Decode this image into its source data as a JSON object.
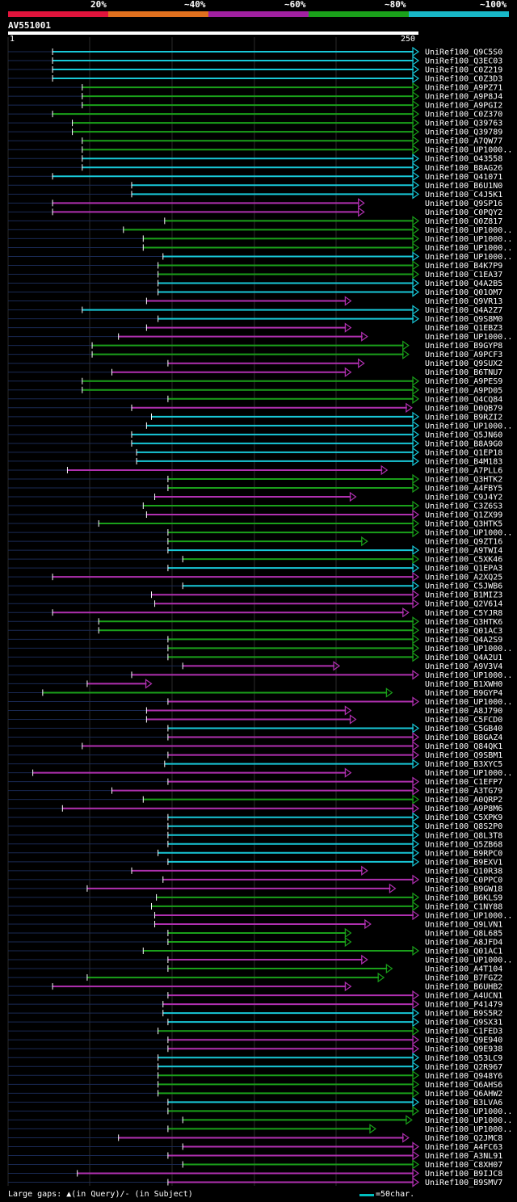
{
  "legend": {
    "labels": [
      "20%",
      "~40%",
      "~60%",
      "~80%",
      "~100%"
    ],
    "colors": [
      "#e0143c",
      "#e0701e",
      "#a020a0",
      "#1aa01a",
      "#18b8c8"
    ]
  },
  "query": {
    "id": "AV551001",
    "start": "1",
    "end": "250"
  },
  "footer": {
    "gaps_text": "Large gaps: ▲(in Query)/- (in Subject)",
    "scale_text": "=50char."
  },
  "chart_data": {
    "type": "alignment-overview",
    "query_length": 250,
    "hits": [
      {
        "name": "UniRef100_Q9C5S0",
        "start": 28,
        "end": 250,
        "color": "cyan"
      },
      {
        "name": "UniRef100_Q3EC03",
        "start": 28,
        "end": 250,
        "color": "cyan"
      },
      {
        "name": "UniRef100_C0Z219",
        "start": 28,
        "end": 250,
        "color": "cyan"
      },
      {
        "name": "UniRef100_C0Z3D3",
        "start": 28,
        "end": 250,
        "color": "cyan"
      },
      {
        "name": "UniRef100_A9PZ71",
        "start": 46,
        "end": 250,
        "color": "green"
      },
      {
        "name": "UniRef100_A9P8J4",
        "start": 46,
        "end": 250,
        "color": "green"
      },
      {
        "name": "UniRef100_A9PGI2",
        "start": 46,
        "end": 250,
        "color": "green"
      },
      {
        "name": "UniRef100_C0Z370",
        "start": 28,
        "end": 250,
        "color": "green"
      },
      {
        "name": "UniRef100_Q39763",
        "start": 40,
        "end": 250,
        "color": "green"
      },
      {
        "name": "UniRef100_Q39789",
        "start": 40,
        "end": 250,
        "color": "green"
      },
      {
        "name": "UniRef100_A7QW77",
        "start": 46,
        "end": 250,
        "color": "green"
      },
      {
        "name": "UniRef100_UP1000..",
        "start": 46,
        "end": 250,
        "color": "green"
      },
      {
        "name": "UniRef100_O43558",
        "start": 46,
        "end": 250,
        "color": "cyan"
      },
      {
        "name": "UniRef100_B8AG26",
        "start": 46,
        "end": 250,
        "color": "cyan"
      },
      {
        "name": "UniRef100_Q41071",
        "start": 28,
        "end": 250,
        "color": "cyan"
      },
      {
        "name": "UniRef100_B6U1N0",
        "start": 76,
        "end": 250,
        "color": "cyan"
      },
      {
        "name": "UniRef100_C4J5K1",
        "start": 76,
        "end": 250,
        "color": "cyan"
      },
      {
        "name": "UniRef100_Q9SP16",
        "start": 28,
        "end": 217,
        "color": "magenta"
      },
      {
        "name": "UniRef100_C0PQY2",
        "start": 28,
        "end": 217,
        "color": "magenta"
      },
      {
        "name": "UniRef100_Q0Z817",
        "start": 96,
        "end": 250,
        "color": "green"
      },
      {
        "name": "UniRef100_UP1000..",
        "start": 71,
        "end": 250,
        "color": "green"
      },
      {
        "name": "UniRef100_UP1000..",
        "start": 83,
        "end": 250,
        "color": "green"
      },
      {
        "name": "UniRef100_UP1000..",
        "start": 83,
        "end": 250,
        "color": "green"
      },
      {
        "name": "UniRef100_UP1000..",
        "start": 95,
        "end": 250,
        "color": "cyan"
      },
      {
        "name": "UniRef100_B4K7P9",
        "start": 92,
        "end": 250,
        "color": "green"
      },
      {
        "name": "UniRef100_C1EA37",
        "start": 92,
        "end": 250,
        "color": "green"
      },
      {
        "name": "UniRef100_Q4A2B5",
        "start": 92,
        "end": 250,
        "color": "cyan"
      },
      {
        "name": "UniRef100_Q01OM7",
        "start": 92,
        "end": 250,
        "color": "cyan"
      },
      {
        "name": "UniRef100_Q9VR13",
        "start": 85,
        "end": 209,
        "color": "magenta"
      },
      {
        "name": "UniRef100_Q4A2Z7",
        "start": 46,
        "end": 250,
        "color": "cyan"
      },
      {
        "name": "UniRef100_Q9S8M0",
        "start": 92,
        "end": 250,
        "color": "cyan"
      },
      {
        "name": "UniRef100_Q1EBZ3",
        "start": 85,
        "end": 209,
        "color": "magenta"
      },
      {
        "name": "UniRef100_UP1000..",
        "start": 68,
        "end": 219,
        "color": "magenta"
      },
      {
        "name": "UniRef100_B9GYP8",
        "start": 52,
        "end": 244,
        "color": "green"
      },
      {
        "name": "UniRef100_A9PCF3",
        "start": 52,
        "end": 244,
        "color": "green"
      },
      {
        "name": "UniRef100_Q9SUX2",
        "start": 98,
        "end": 217,
        "color": "magenta"
      },
      {
        "name": "UniRef100_B6TNU7",
        "start": 64,
        "end": 209,
        "color": "magenta"
      },
      {
        "name": "UniRef100_A9PES9",
        "start": 46,
        "end": 250,
        "color": "green"
      },
      {
        "name": "UniRef100_A9PD05",
        "start": 46,
        "end": 250,
        "color": "green"
      },
      {
        "name": "UniRef100_Q4CQ84",
        "start": 98,
        "end": 250,
        "color": "green"
      },
      {
        "name": "UniRef100_D0QB79",
        "start": 76,
        "end": 246,
        "color": "magenta"
      },
      {
        "name": "UniRef100_B9RZI2",
        "start": 88,
        "end": 250,
        "color": "cyan"
      },
      {
        "name": "UniRef100_UP1000..",
        "start": 85,
        "end": 250,
        "color": "cyan"
      },
      {
        "name": "UniRef100_Q5JN60",
        "start": 76,
        "end": 250,
        "color": "cyan"
      },
      {
        "name": "UniRef100_B8A9G0",
        "start": 76,
        "end": 250,
        "color": "cyan"
      },
      {
        "name": "UniRef100_Q1EP18",
        "start": 79,
        "end": 250,
        "color": "cyan"
      },
      {
        "name": "UniRef100_B4M183",
        "start": 79,
        "end": 250,
        "color": "cyan"
      },
      {
        "name": "UniRef100_A7PLL6",
        "start": 37,
        "end": 231,
        "color": "magenta"
      },
      {
        "name": "UniRef100_Q3HTK2",
        "start": 98,
        "end": 250,
        "color": "green"
      },
      {
        "name": "UniRef100_A4FBY5",
        "start": 98,
        "end": 250,
        "color": "green"
      },
      {
        "name": "UniRef100_C9J4Y2",
        "start": 90,
        "end": 212,
        "color": "magenta"
      },
      {
        "name": "UniRef100_C3Z6S3",
        "start": 83,
        "end": 250,
        "color": "green"
      },
      {
        "name": "UniRef100_Q1ZX99",
        "start": 85,
        "end": 250,
        "color": "magenta"
      },
      {
        "name": "UniRef100_Q3HTK5",
        "start": 56,
        "end": 250,
        "color": "green"
      },
      {
        "name": "UniRef100_UP1000..",
        "start": 98,
        "end": 250,
        "color": "green"
      },
      {
        "name": "UniRef100_Q9ZT16",
        "start": 98,
        "end": 219,
        "color": "green"
      },
      {
        "name": "UniRef100_A9TWI4",
        "start": 98,
        "end": 250,
        "color": "cyan"
      },
      {
        "name": "UniRef100_C5XK46",
        "start": 107,
        "end": 250,
        "color": "green"
      },
      {
        "name": "UniRef100_Q1EPA3",
        "start": 98,
        "end": 250,
        "color": "cyan"
      },
      {
        "name": "UniRef100_A2XQ25",
        "start": 28,
        "end": 250,
        "color": "magenta"
      },
      {
        "name": "UniRef100_C5JWB6",
        "start": 107,
        "end": 250,
        "color": "cyan"
      },
      {
        "name": "UniRef100_B1MIZ3",
        "start": 88,
        "end": 250,
        "color": "magenta"
      },
      {
        "name": "UniRef100_Q2V614",
        "start": 90,
        "end": 250,
        "color": "magenta"
      },
      {
        "name": "UniRef100_C5YJR8",
        "start": 28,
        "end": 244,
        "color": "magenta"
      },
      {
        "name": "UniRef100_Q3HTK6",
        "start": 56,
        "end": 250,
        "color": "green"
      },
      {
        "name": "UniRef100_Q01AC3",
        "start": 56,
        "end": 250,
        "color": "green"
      },
      {
        "name": "UniRef100_Q4A2S9",
        "start": 98,
        "end": 250,
        "color": "green"
      },
      {
        "name": "UniRef100_UP1000..",
        "start": 98,
        "end": 250,
        "color": "green"
      },
      {
        "name": "UniRef100_Q4A2U1",
        "start": 98,
        "end": 250,
        "color": "green"
      },
      {
        "name": "UniRef100_A9V3V4",
        "start": 107,
        "end": 202,
        "color": "magenta"
      },
      {
        "name": "UniRef100_UP1000..",
        "start": 76,
        "end": 250,
        "color": "magenta"
      },
      {
        "name": "UniRef100_B1XWH0",
        "start": 49,
        "end": 88,
        "color": "magenta"
      },
      {
        "name": "UniRef100_B9GYP4",
        "start": 22,
        "end": 234,
        "color": "green"
      },
      {
        "name": "UniRef100_UP1000..",
        "start": 98,
        "end": 250,
        "color": "magenta"
      },
      {
        "name": "UniRef100_A8J790",
        "start": 85,
        "end": 209,
        "color": "magenta"
      },
      {
        "name": "UniRef100_C5FCD0",
        "start": 85,
        "end": 212,
        "color": "magenta"
      },
      {
        "name": "UniRef100_C5GB40",
        "start": 98,
        "end": 250,
        "color": "cyan"
      },
      {
        "name": "UniRef100_B8GAZ4",
        "start": 98,
        "end": 250,
        "color": "magenta"
      },
      {
        "name": "UniRef100_Q84QK1",
        "start": 46,
        "end": 250,
        "color": "magenta"
      },
      {
        "name": "UniRef100_Q9SBM1",
        "start": 98,
        "end": 250,
        "color": "magenta"
      },
      {
        "name": "UniRef100_B3XYC5",
        "start": 96,
        "end": 250,
        "color": "cyan"
      },
      {
        "name": "UniRef100_UP1000..",
        "start": 16,
        "end": 209,
        "color": "magenta"
      },
      {
        "name": "UniRef100_C1EFP7",
        "start": 98,
        "end": 250,
        "color": "magenta"
      },
      {
        "name": "UniRef100_A3TG79",
        "start": 64,
        "end": 250,
        "color": "magenta"
      },
      {
        "name": "UniRef100_A0QRP2",
        "start": 83,
        "end": 250,
        "color": "green"
      },
      {
        "name": "UniRef100_A9P8M6",
        "start": 34,
        "end": 250,
        "color": "magenta"
      },
      {
        "name": "UniRef100_C5XPK9",
        "start": 98,
        "end": 250,
        "color": "cyan"
      },
      {
        "name": "UniRef100_Q8S2P0",
        "start": 98,
        "end": 250,
        "color": "cyan"
      },
      {
        "name": "UniRef100_Q8L3T8",
        "start": 98,
        "end": 250,
        "color": "cyan"
      },
      {
        "name": "UniRef100_Q5ZB68",
        "start": 98,
        "end": 250,
        "color": "cyan"
      },
      {
        "name": "UniRef100_B9RPC0",
        "start": 92,
        "end": 250,
        "color": "cyan"
      },
      {
        "name": "UniRef100_B9EXV1",
        "start": 98,
        "end": 250,
        "color": "cyan"
      },
      {
        "name": "UniRef100_Q10R38",
        "start": 76,
        "end": 219,
        "color": "magenta"
      },
      {
        "name": "UniRef100_C0PPC0",
        "start": 95,
        "end": 250,
        "color": "magenta"
      },
      {
        "name": "UniRef100_B9GW18",
        "start": 49,
        "end": 236,
        "color": "magenta"
      },
      {
        "name": "UniRef100_B6KLS9",
        "start": 91,
        "end": 250,
        "color": "green"
      },
      {
        "name": "UniRef100_C1NY88",
        "start": 88,
        "end": 250,
        "color": "green"
      },
      {
        "name": "UniRef100_UP1000..",
        "start": 90,
        "end": 250,
        "color": "magenta"
      },
      {
        "name": "UniRef100_Q9LVN1",
        "start": 90,
        "end": 221,
        "color": "magenta"
      },
      {
        "name": "UniRef100_Q8L685",
        "start": 98,
        "end": 209,
        "color": "green"
      },
      {
        "name": "UniRef100_A8JFD4",
        "start": 98,
        "end": 209,
        "color": "green"
      },
      {
        "name": "UniRef100_Q01AC1",
        "start": 83,
        "end": 250,
        "color": "green"
      },
      {
        "name": "UniRef100_UP1000..",
        "start": 98,
        "end": 219,
        "color": "magenta"
      },
      {
        "name": "UniRef100_A4T104",
        "start": 98,
        "end": 234,
        "color": "green"
      },
      {
        "name": "UniRef100_B7FGZ2",
        "start": 49,
        "end": 229,
        "color": "green"
      },
      {
        "name": "UniRef100_B6UHB2",
        "start": 28,
        "end": 209,
        "color": "magenta"
      },
      {
        "name": "UniRef100_A4UCN1",
        "start": 98,
        "end": 250,
        "color": "magenta"
      },
      {
        "name": "UniRef100_P41479",
        "start": 95,
        "end": 250,
        "color": "magenta"
      },
      {
        "name": "UniRef100_B9S5R2",
        "start": 95,
        "end": 250,
        "color": "cyan"
      },
      {
        "name": "UniRef100_Q9SX31",
        "start": 98,
        "end": 250,
        "color": "cyan"
      },
      {
        "name": "UniRef100_C1FED3",
        "start": 92,
        "end": 250,
        "color": "green"
      },
      {
        "name": "UniRef100_Q9E940",
        "start": 98,
        "end": 250,
        "color": "magenta"
      },
      {
        "name": "UniRef100_Q9E938",
        "start": 98,
        "end": 250,
        "color": "magenta"
      },
      {
        "name": "UniRef100_Q53LC9",
        "start": 92,
        "end": 250,
        "color": "cyan"
      },
      {
        "name": "UniRef100_Q2R967",
        "start": 92,
        "end": 250,
        "color": "cyan"
      },
      {
        "name": "UniRef100_Q948Y6",
        "start": 92,
        "end": 250,
        "color": "green"
      },
      {
        "name": "UniRef100_Q6AHS6",
        "start": 92,
        "end": 250,
        "color": "green"
      },
      {
        "name": "UniRef100_Q6AHW2",
        "start": 92,
        "end": 250,
        "color": "green"
      },
      {
        "name": "UniRef100_B3LVA6",
        "start": 98,
        "end": 250,
        "color": "cyan"
      },
      {
        "name": "UniRef100_UP1000..",
        "start": 98,
        "end": 250,
        "color": "green"
      },
      {
        "name": "UniRef100_UP1000..",
        "start": 107,
        "end": 246,
        "color": "green"
      },
      {
        "name": "UniRef100_UP1000..",
        "start": 98,
        "end": 224,
        "color": "green"
      },
      {
        "name": "UniRef100_Q2JMC8",
        "start": 68,
        "end": 244,
        "color": "magenta"
      },
      {
        "name": "UniRef100_A4FC63",
        "start": 107,
        "end": 250,
        "color": "magenta"
      },
      {
        "name": "UniRef100_A3NL91",
        "start": 98,
        "end": 250,
        "color": "magenta"
      },
      {
        "name": "UniRef100_C8XH07",
        "start": 107,
        "end": 250,
        "color": "green"
      },
      {
        "name": "UniRef100_B9IJC8",
        "start": 43,
        "end": 250,
        "color": "magenta"
      },
      {
        "name": "UniRef100_B9SMV7",
        "start": 98,
        "end": 250,
        "color": "magenta"
      }
    ]
  }
}
